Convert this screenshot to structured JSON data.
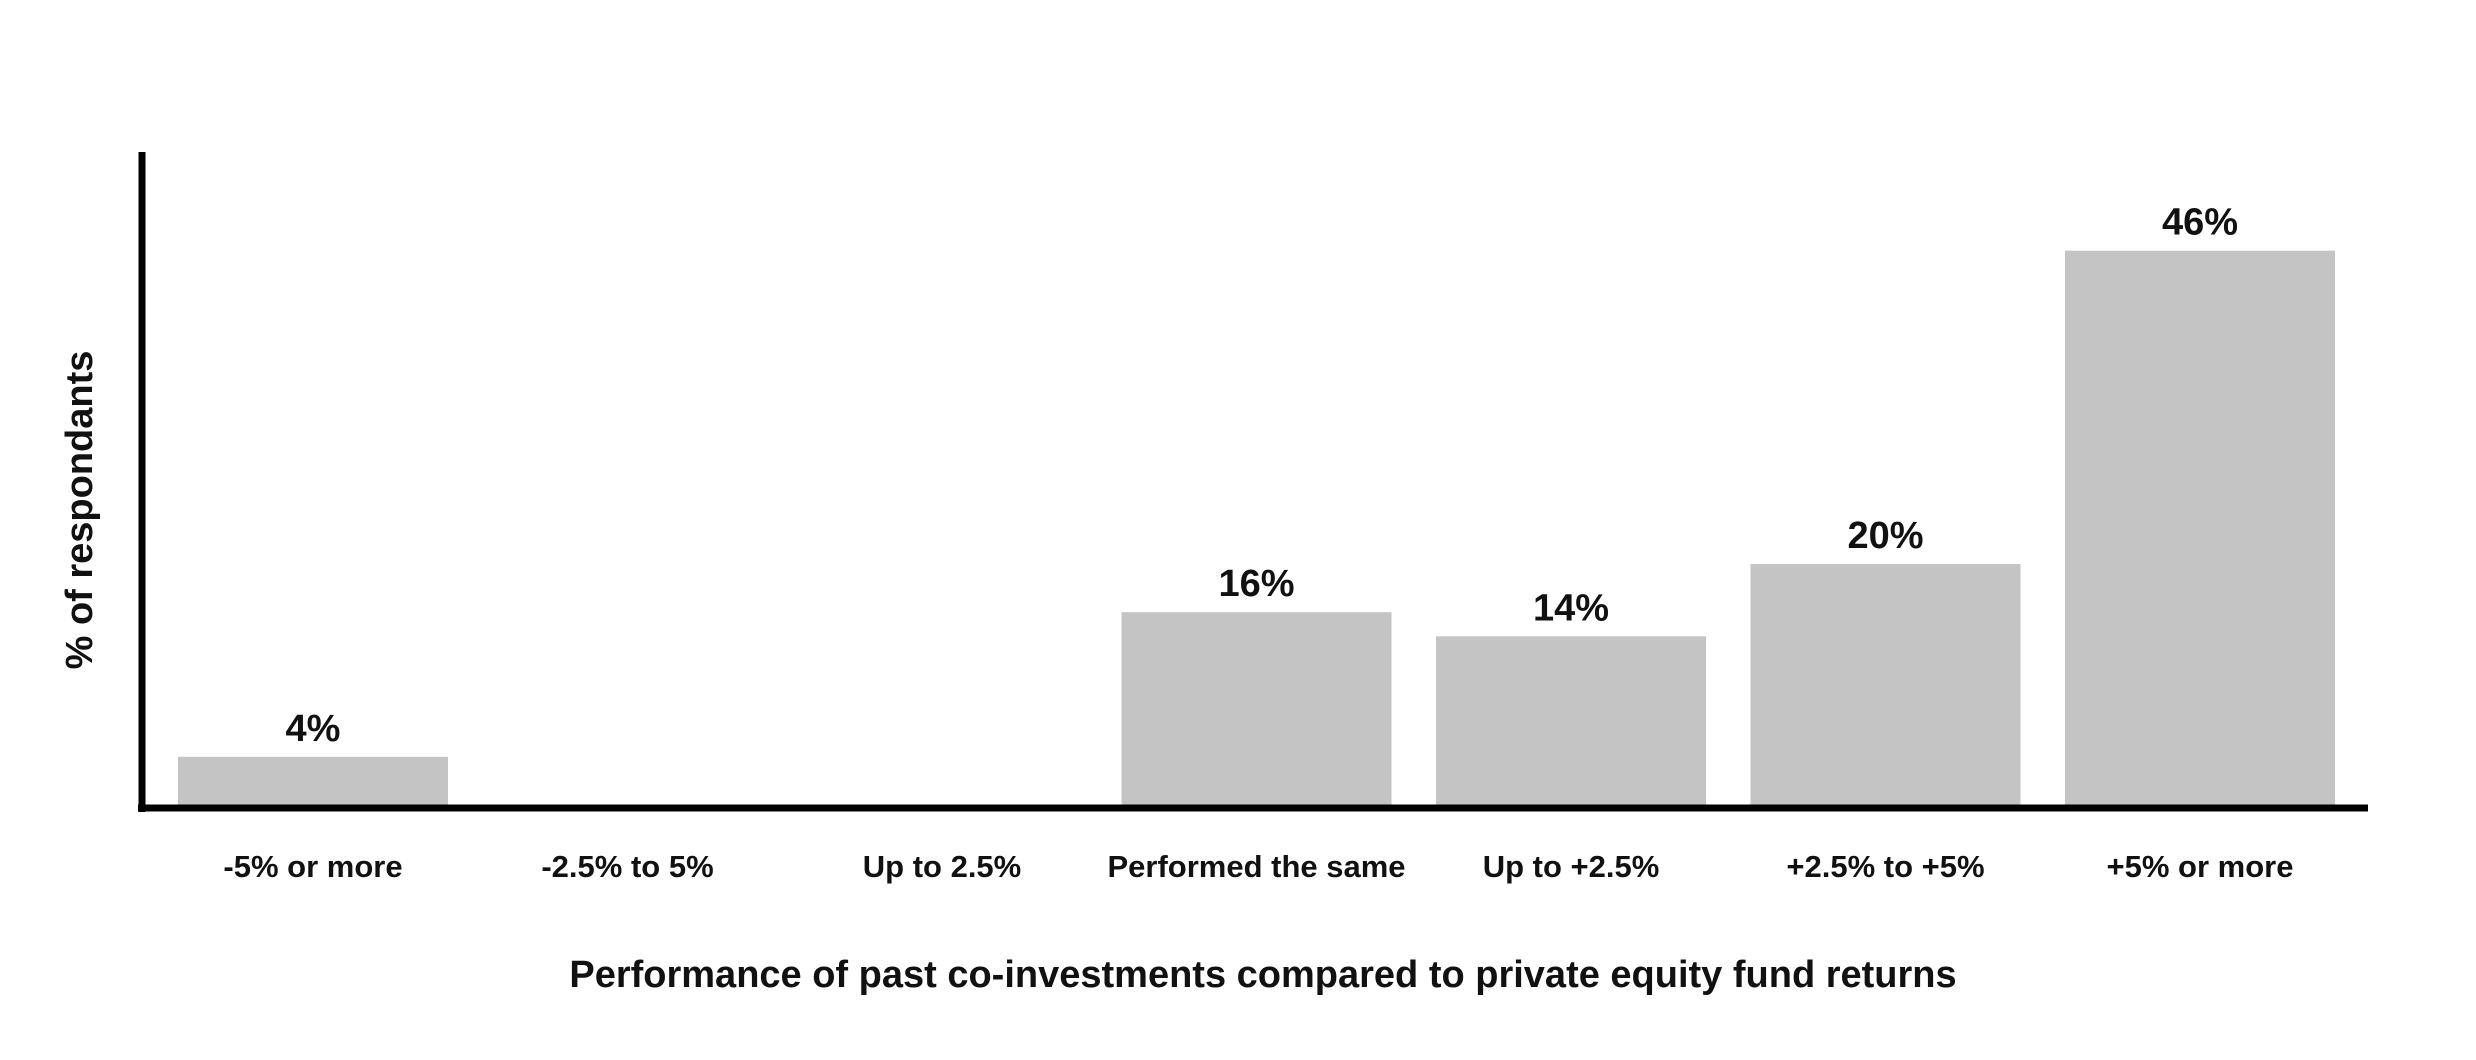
{
  "chart_data": {
    "type": "bar",
    "categories": [
      "-5% or more",
      "-2.5% to 5%",
      "Up to 2.5%",
      "Performed the same",
      "Up to +2.5%",
      "+2.5% to +5%",
      "+5% or more"
    ],
    "values": [
      4,
      0,
      0,
      16,
      14,
      20,
      46
    ],
    "value_labels": [
      "4%",
      "",
      "",
      "16%",
      "14%",
      "20%",
      "46%"
    ],
    "title": "",
    "xlabel": "Performance of past co-investments compared to private equity fund returns",
    "ylabel": "% of respondants",
    "ylim": [
      0,
      54
    ],
    "grid": false,
    "legend": "none",
    "colors": {
      "bar": "#c4c4c4",
      "axis": "#000000",
      "text": "#111111"
    }
  }
}
